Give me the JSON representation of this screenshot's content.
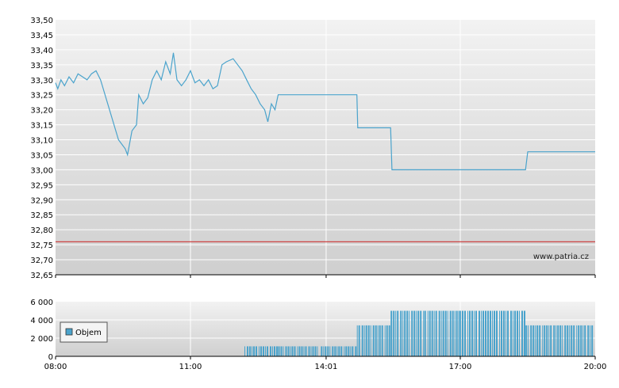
{
  "chart_data": [
    {
      "type": "line",
      "title": "",
      "xlabel": "",
      "ylabel": "",
      "ylim": [
        32.65,
        33.5
      ],
      "y_ticks": [
        "33,50",
        "33,45",
        "33,40",
        "33,35",
        "33,30",
        "33,25",
        "33,20",
        "33,15",
        "33,10",
        "33,05",
        "33,00",
        "32,95",
        "32,90",
        "32,85",
        "32,80",
        "32,75",
        "32,70",
        "32,65"
      ],
      "x_ticks": [],
      "grid": true,
      "reference_line": {
        "value": 32.76,
        "color": "#cc3333"
      },
      "watermark": "www.patria.cz",
      "line_color": "#4aa3cc",
      "series": [
        {
          "values": [
            {
              "x": 8.0,
              "y": 33.29
            },
            {
              "x": 8.05,
              "y": 33.27
            },
            {
              "x": 8.12,
              "y": 33.3
            },
            {
              "x": 8.2,
              "y": 33.28
            },
            {
              "x": 8.3,
              "y": 33.31
            },
            {
              "x": 8.4,
              "y": 33.29
            },
            {
              "x": 8.5,
              "y": 33.32
            },
            {
              "x": 8.6,
              "y": 33.31
            },
            {
              "x": 8.7,
              "y": 33.3
            },
            {
              "x": 8.8,
              "y": 33.32
            },
            {
              "x": 8.9,
              "y": 33.33
            },
            {
              "x": 9.0,
              "y": 33.3
            },
            {
              "x": 9.4,
              "y": 33.1
            },
            {
              "x": 9.55,
              "y": 33.07
            },
            {
              "x": 9.6,
              "y": 33.05
            },
            {
              "x": 9.7,
              "y": 33.13
            },
            {
              "x": 9.8,
              "y": 33.15
            },
            {
              "x": 9.85,
              "y": 33.25
            },
            {
              "x": 9.95,
              "y": 33.22
            },
            {
              "x": 10.05,
              "y": 33.24
            },
            {
              "x": 10.15,
              "y": 33.3
            },
            {
              "x": 10.25,
              "y": 33.33
            },
            {
              "x": 10.35,
              "y": 33.3
            },
            {
              "x": 10.45,
              "y": 33.36
            },
            {
              "x": 10.55,
              "y": 33.32
            },
            {
              "x": 10.62,
              "y": 33.39
            },
            {
              "x": 10.7,
              "y": 33.3
            },
            {
              "x": 10.8,
              "y": 33.28
            },
            {
              "x": 10.9,
              "y": 33.3
            },
            {
              "x": 11.0,
              "y": 33.33
            },
            {
              "x": 11.1,
              "y": 33.29
            },
            {
              "x": 11.2,
              "y": 33.3
            },
            {
              "x": 11.3,
              "y": 33.28
            },
            {
              "x": 11.4,
              "y": 33.3
            },
            {
              "x": 11.5,
              "y": 33.27
            },
            {
              "x": 11.6,
              "y": 33.28
            },
            {
              "x": 11.7,
              "y": 33.35
            },
            {
              "x": 11.8,
              "y": 33.36
            },
            {
              "x": 11.95,
              "y": 33.37
            },
            {
              "x": 12.05,
              "y": 33.35
            },
            {
              "x": 12.15,
              "y": 33.33
            },
            {
              "x": 12.25,
              "y": 33.3
            },
            {
              "x": 12.35,
              "y": 33.27
            },
            {
              "x": 12.45,
              "y": 33.25
            },
            {
              "x": 12.55,
              "y": 33.22
            },
            {
              "x": 12.65,
              "y": 33.2
            },
            {
              "x": 12.72,
              "y": 33.16
            },
            {
              "x": 12.8,
              "y": 33.22
            },
            {
              "x": 12.88,
              "y": 33.2
            },
            {
              "x": 12.95,
              "y": 33.25
            },
            {
              "x": 14.7,
              "y": 33.25
            },
            {
              "x": 14.72,
              "y": 33.14
            },
            {
              "x": 15.45,
              "y": 33.14
            },
            {
              "x": 15.48,
              "y": 33.0
            },
            {
              "x": 18.45,
              "y": 33.0
            },
            {
              "x": 18.5,
              "y": 33.06
            },
            {
              "x": 20.0,
              "y": 33.06
            }
          ]
        }
      ]
    },
    {
      "type": "bar",
      "title": "",
      "xlabel": "",
      "ylabel": "",
      "ylim": [
        0,
        6000
      ],
      "y_ticks": [
        "6 000",
        "4 000",
        "2 000",
        "0"
      ],
      "x_ticks": [
        "08:00",
        "11:00",
        "14:01",
        "17:00",
        "20:00"
      ],
      "grid": true,
      "legend": {
        "position": "left",
        "entries": [
          "Objem"
        ]
      },
      "bar_color": "#4aa3cc",
      "series": [
        {
          "name": "Objem",
          "values": [
            {
              "x_start": 12.2,
              "x_end": 12.95,
              "y": 1100
            },
            {
              "x_start": 12.95,
              "x_end": 13.9,
              "y": 1100
            },
            {
              "x_start": 13.9,
              "x_end": 14.7,
              "y": 1100
            },
            {
              "x_start": 14.7,
              "x_end": 15.45,
              "y": 3400
            },
            {
              "x_start": 15.45,
              "x_end": 16.2,
              "y": 5000
            },
            {
              "x_start": 16.2,
              "x_end": 17.0,
              "y": 5000
            },
            {
              "x_start": 17.0,
              "x_end": 17.6,
              "y": 5000
            },
            {
              "x_start": 17.6,
              "x_end": 18.45,
              "y": 5000
            },
            {
              "x_start": 18.45,
              "x_end": 20.0,
              "y": 3400
            }
          ]
        }
      ]
    }
  ]
}
